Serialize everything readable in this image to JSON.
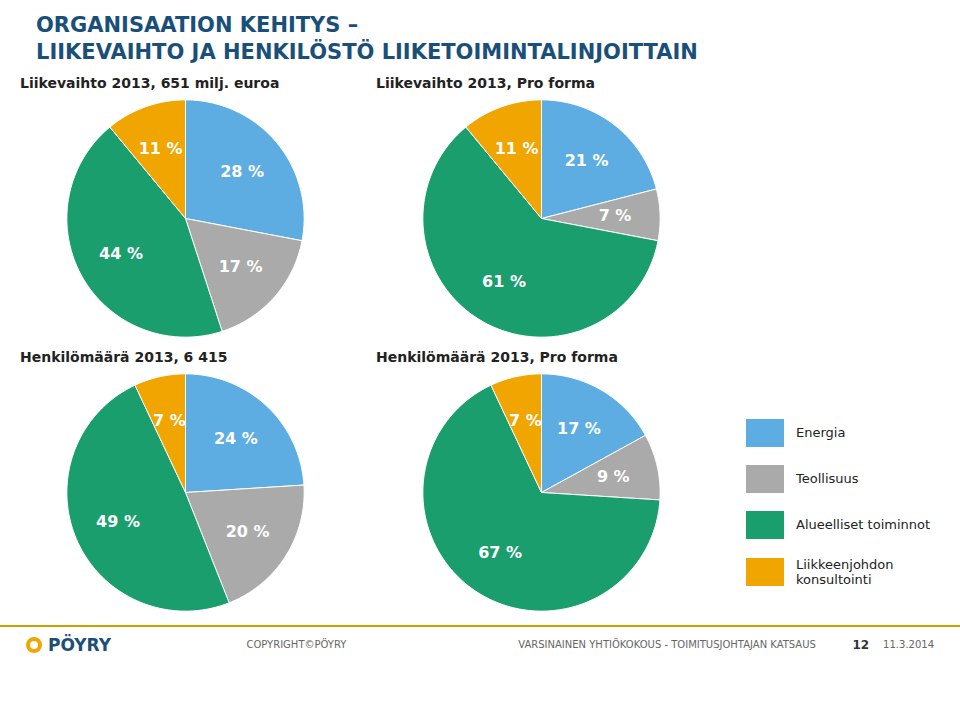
{
  "title": "ORGANISAATION KEHITYS –\nLIIKEVAIHTO JA HENKILÖSTÖ LIIKETOIMINTALINJOITTAIN",
  "legend": "right",
  "annotations": [
    "PÖYRY",
    "COPYRIGHT©PÖYRY",
    "VARSINAINEN YHTIÖKOKOUS - TOIMITUSJOHTAJAN KATSAUS",
    "12",
    "11.3.2014"
  ],
  "chart_data": [
    {
      "type": "pie",
      "title": "Liikevaihto 2013, 651 milj. euroa",
      "categories": [
        "Energia",
        "Teollisuus",
        "Alueelliset toiminnot",
        "Liikkeenjohdon\nkonsultointi"
      ],
      "values": [
        28,
        17,
        44,
        11
      ],
      "value_labels": [
        "28 %",
        "17 %",
        "44 %",
        "11 %"
      ],
      "colors": [
        "#5dade2",
        "#aaaaaa",
        "#1a9e6e",
        "#f0a500"
      ],
      "data_labels": true
    },
    {
      "type": "pie",
      "title": "Liikevaihto 2013, Pro forma",
      "categories": [
        "Energia",
        "Teollisuus",
        "Alueelliset toiminnot",
        "Liikkeenjohdon\nkonsultointi"
      ],
      "values": [
        21,
        7,
        61,
        11
      ],
      "value_labels": [
        "21 %",
        "7 %",
        "61 %",
        "11 %"
      ],
      "colors": [
        "#5dade2",
        "#aaaaaa",
        "#1a9e6e",
        "#f0a500"
      ],
      "data_labels": true
    },
    {
      "type": "pie",
      "title": "Henkilömäärä 2013, 6 415",
      "categories": [
        "Energia",
        "Teollisuus",
        "Alueelliset toiminnot",
        "Liikkeenjohdon\nkonsultointi"
      ],
      "values": [
        24,
        20,
        49,
        7
      ],
      "value_labels": [
        "24 %",
        "20 %",
        "49 %",
        "7 %"
      ],
      "colors": [
        "#5dade2",
        "#aaaaaa",
        "#1a9e6e",
        "#f0a500"
      ],
      "data_labels": true
    },
    {
      "type": "pie",
      "title": "Henkilömäärä 2013, Pro forma",
      "categories": [
        "Energia",
        "Teollisuus",
        "Alueelliset toiminnot",
        "Liikkeenjohdon\nkonsultointi"
      ],
      "values": [
        17,
        9,
        67,
        7
      ],
      "value_labels": [
        "17 %",
        "9 %",
        "67 %",
        "7 %"
      ],
      "colors": [
        "#5dade2",
        "#aaaaaa",
        "#1a9e6e",
        "#f0a500"
      ],
      "data_labels": true
    }
  ]
}
